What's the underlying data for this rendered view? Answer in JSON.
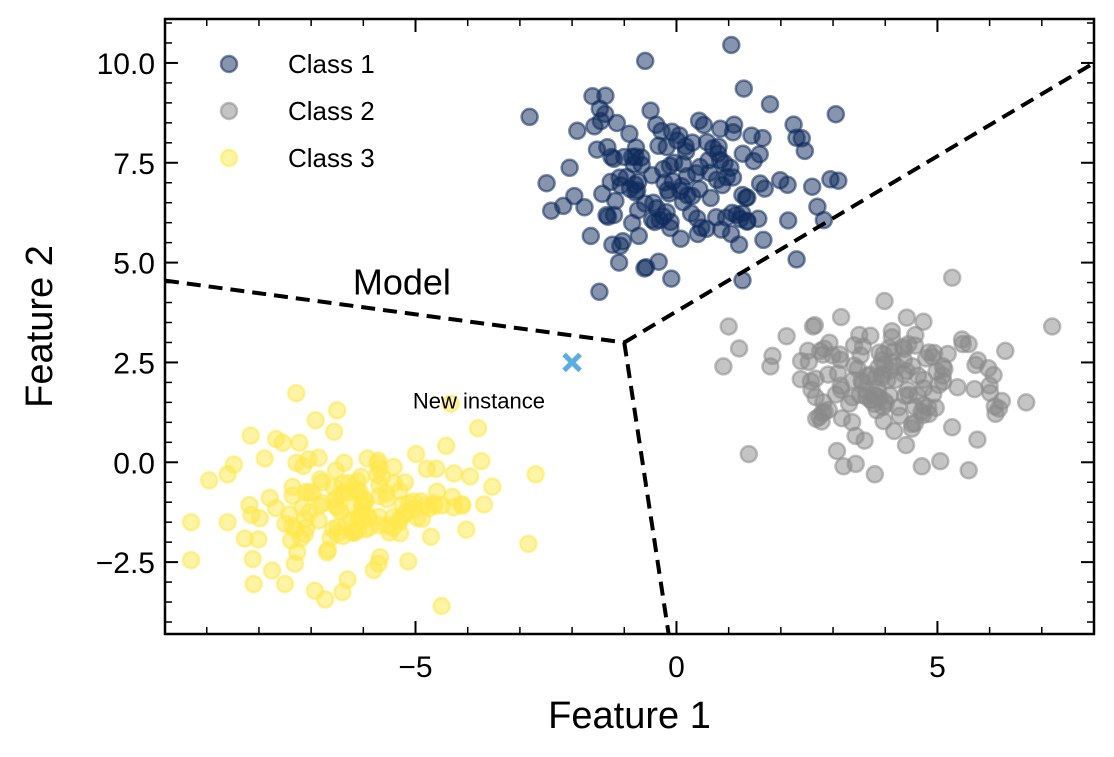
{
  "chart_data": {
    "type": "scatter",
    "xlabel": "Feature 1",
    "ylabel": "Feature 2",
    "xlim": [
      -9.8,
      8.0
    ],
    "ylim": [
      -4.3,
      11.1
    ],
    "xticks": [
      {
        "value": -5,
        "label": "−5"
      },
      {
        "value": 0,
        "label": "0"
      },
      {
        "value": 5,
        "label": "5"
      }
    ],
    "yticks": [
      {
        "value": -2.5,
        "label": "−2.5"
      },
      {
        "value": 0,
        "label": "0.0"
      },
      {
        "value": 2.5,
        "label": "2.5"
      },
      {
        "value": 5,
        "label": "5.0"
      },
      {
        "value": 7.5,
        "label": "7.5"
      },
      {
        "value": 10,
        "label": "10.0"
      }
    ],
    "legend_position": "top-left",
    "grid": false,
    "series": [
      {
        "name": "Class 1",
        "color": "#0d2a5c",
        "center": [
          0.0,
          7.0
        ],
        "spread": [
          1.35,
          1.2
        ],
        "count": 150,
        "seed": 11,
        "points": [
          [
            1.05,
            10.45
          ],
          [
            -0.6,
            10.05
          ],
          [
            -1.9,
            8.3
          ],
          [
            2.6,
            6.9
          ],
          [
            3.1,
            7.05
          ],
          [
            -0.1,
            4.6
          ],
          [
            -1.1,
            5.0
          ],
          [
            2.7,
            6.4
          ],
          [
            -2.4,
            6.3
          ],
          [
            1.2,
            5.45
          ]
        ]
      },
      {
        "name": "Class 2",
        "color": "#8a8a8a",
        "center": [
          4.0,
          2.0
        ],
        "spread": [
          1.3,
          1.0
        ],
        "count": 150,
        "seed": 23,
        "points": [
          [
            7.2,
            3.4
          ],
          [
            6.7,
            1.5
          ],
          [
            6.1,
            1.4
          ],
          [
            1.0,
            3.4
          ],
          [
            1.2,
            2.85
          ],
          [
            0.9,
            2.4
          ],
          [
            5.6,
            -0.2
          ],
          [
            3.8,
            -0.3
          ],
          [
            4.7,
            -0.1
          ],
          [
            3.2,
            -0.1
          ],
          [
            1.8,
            2.4
          ]
        ]
      },
      {
        "name": "Class 3",
        "color": "#ffe84a",
        "center": [
          -6.0,
          -1.0
        ],
        "spread": [
          1.4,
          1.1
        ],
        "count": 150,
        "seed": 37,
        "points": [
          [
            -9.3,
            -1.5
          ],
          [
            -9.3,
            -2.45
          ],
          [
            -8.1,
            -3.05
          ],
          [
            -7.5,
            -3.05
          ],
          [
            -6.4,
            -3.25
          ],
          [
            -4.5,
            -3.6
          ],
          [
            -2.7,
            -0.3
          ],
          [
            -3.8,
            0.85
          ],
          [
            -6.5,
            1.3
          ],
          [
            -8.6,
            -0.3
          ],
          [
            -8.6,
            -1.5
          ]
        ]
      }
    ],
    "boundaries": [
      [
        [
          -9.8,
          4.55
        ],
        [
          -1.0,
          3.0
        ]
      ],
      [
        [
          -1.0,
          3.0
        ],
        [
          8.0,
          10.0
        ]
      ],
      [
        [
          -1.0,
          3.0
        ],
        [
          -0.15,
          -4.3
        ]
      ]
    ],
    "new_instance": {
      "x": -2.0,
      "y": 2.5,
      "label": "New instance",
      "label_x": -5.05,
      "label_y": 1.55,
      "color": "#5aafe0"
    },
    "model_label": {
      "text": "Model",
      "x": -6.2,
      "y": 4.55
    }
  }
}
